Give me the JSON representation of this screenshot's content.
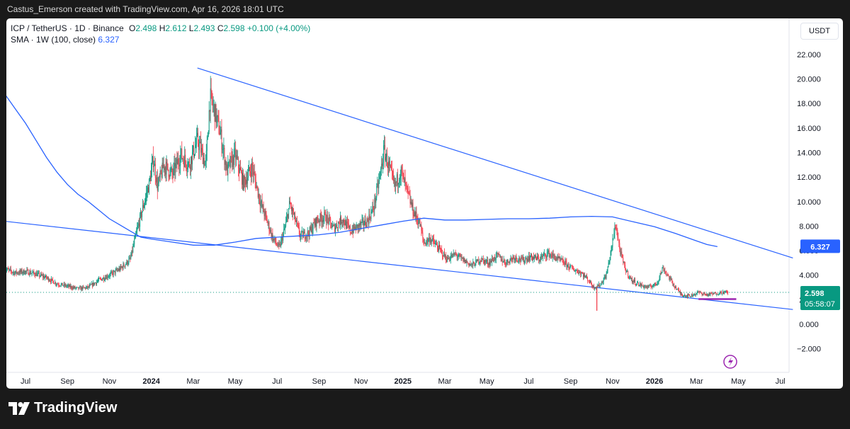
{
  "header": {
    "attribution": "Castus_Emerson created with TradingView.com, Apr 16, 2026 18:01 UTC"
  },
  "legend": {
    "symbol": "ICP / TetherUS · 1D · Binance",
    "open_label": "O",
    "open": "2.498",
    "high_label": "H",
    "high": "2.612",
    "low_label": "L",
    "low": "2.493",
    "close_label": "C",
    "close": "2.598",
    "change": "+0.100 (+4.00%)",
    "sma_label": "SMA · 1W (100, close)",
    "sma_value": "6.327"
  },
  "currency_button": "USDT",
  "price_tags": {
    "sma": "6.327",
    "price": "2.598",
    "countdown": "05:58:07"
  },
  "brand": {
    "name": "TradingView"
  },
  "colors": {
    "up": "#089981",
    "down": "#f23645",
    "trendline": "#2962ff",
    "sma": "#2962ff",
    "support": "#9c27b0",
    "background": "#ffffff"
  },
  "chart_data": {
    "type": "candlestick",
    "title": "ICP / TetherUS · 1D · Binance",
    "ylim": [
      -3,
      23.5
    ],
    "y_ticks": [
      -2,
      0,
      2,
      4,
      6,
      8,
      10,
      12,
      14,
      16,
      18,
      20,
      22
    ],
    "y_tick_labels": [
      "−2.000",
      "0.000",
      "2.000",
      "4.000",
      "6.000",
      "8.000",
      "10.000",
      "12.000",
      "14.000",
      "16.000",
      "18.000",
      "20.000",
      "22.000"
    ],
    "xlim": [
      0,
      37.6
    ],
    "x_ticks": [
      {
        "m": 1,
        "label": "Jul"
      },
      {
        "m": 3,
        "label": "Sep"
      },
      {
        "m": 5,
        "label": "Nov"
      },
      {
        "m": 7,
        "label": "2024",
        "bold": true
      },
      {
        "m": 9,
        "label": "Mar"
      },
      {
        "m": 11,
        "label": "May"
      },
      {
        "m": 13,
        "label": "Jul"
      },
      {
        "m": 15,
        "label": "Sep"
      },
      {
        "m": 17,
        "label": "Nov"
      },
      {
        "m": 19,
        "label": "2025",
        "bold": true
      },
      {
        "m": 21,
        "label": "Mar"
      },
      {
        "m": 23,
        "label": "May"
      },
      {
        "m": 25,
        "label": "Jul"
      },
      {
        "m": 27,
        "label": "Sep"
      },
      {
        "m": 29,
        "label": "Nov"
      },
      {
        "m": 31,
        "label": "2026",
        "bold": true
      },
      {
        "m": 33,
        "label": "Mar"
      },
      {
        "m": 35,
        "label": "May"
      },
      {
        "m": 37,
        "label": "Jul"
      }
    ],
    "price_path": [
      [
        0,
        4.5
      ],
      [
        0.5,
        4.2
      ],
      [
        1,
        4.3
      ],
      [
        1.5,
        4.1
      ],
      [
        2,
        3.8
      ],
      [
        2.5,
        3.3
      ],
      [
        3,
        3.1
      ],
      [
        3.5,
        2.9
      ],
      [
        4,
        3.0
      ],
      [
        4.5,
        3.6
      ],
      [
        5,
        4.0
      ],
      [
        5.5,
        4.5
      ],
      [
        6,
        5.3
      ],
      [
        6.3,
        7.5
      ],
      [
        6.6,
        9.5
      ],
      [
        6.9,
        11.5
      ],
      [
        7.1,
        13.5
      ],
      [
        7.3,
        11.2
      ],
      [
        7.6,
        13.0
      ],
      [
        8,
        12.2
      ],
      [
        8.4,
        13.8
      ],
      [
        8.8,
        13.0
      ],
      [
        9.2,
        15.0
      ],
      [
        9.6,
        13.0
      ],
      [
        9.8,
        18.5
      ],
      [
        10.0,
        17.5
      ],
      [
        10.3,
        15.5
      ],
      [
        10.6,
        12.5
      ],
      [
        11,
        13.8
      ],
      [
        11.4,
        11.5
      ],
      [
        11.8,
        12.8
      ],
      [
        12.2,
        10.0
      ],
      [
        12.5,
        8.5
      ],
      [
        12.8,
        7.0
      ],
      [
        13.1,
        6.2
      ],
      [
        13.4,
        8.0
      ],
      [
        13.6,
        9.8
      ],
      [
        13.8,
        8.8
      ],
      [
        14.1,
        7.2
      ],
      [
        14.5,
        7.4
      ],
      [
        14.9,
        8.5
      ],
      [
        15.3,
        8.8
      ],
      [
        15.7,
        7.8
      ],
      [
        16.1,
        8.6
      ],
      [
        16.5,
        7.6
      ],
      [
        16.9,
        8.0
      ],
      [
        17.3,
        8.4
      ],
      [
        17.6,
        9.5
      ],
      [
        17.9,
        12.0
      ],
      [
        18.1,
        14.2
      ],
      [
        18.3,
        13.0
      ],
      [
        18.6,
        11.2
      ],
      [
        18.9,
        12.5
      ],
      [
        19.2,
        10.8
      ],
      [
        19.5,
        9.2
      ],
      [
        19.8,
        8.2
      ],
      [
        20.0,
        6.6
      ],
      [
        20.3,
        7.0
      ],
      [
        20.7,
        6.2
      ],
      [
        21.1,
        5.3
      ],
      [
        21.5,
        5.7
      ],
      [
        21.9,
        5.2
      ],
      [
        22.3,
        4.8
      ],
      [
        22.7,
        5.3
      ],
      [
        23.1,
        5.0
      ],
      [
        23.5,
        5.6
      ],
      [
        23.9,
        5.0
      ],
      [
        24.3,
        5.5
      ],
      [
        24.7,
        5.2
      ],
      [
        25.1,
        5.5
      ],
      [
        25.5,
        5.3
      ],
      [
        25.9,
        5.8
      ],
      [
        26.3,
        5.4
      ],
      [
        26.7,
        5.0
      ],
      [
        27.1,
        4.5
      ],
      [
        27.5,
        4.2
      ],
      [
        27.8,
        3.7
      ],
      [
        28.1,
        3.0
      ],
      [
        28.4,
        3.2
      ],
      [
        28.7,
        4.0
      ],
      [
        28.95,
        6.2
      ],
      [
        29.15,
        8.2
      ],
      [
        29.35,
        6.0
      ],
      [
        29.6,
        4.5
      ],
      [
        29.9,
        3.6
      ],
      [
        30.3,
        3.2
      ],
      [
        30.7,
        3.0
      ],
      [
        31.1,
        3.3
      ],
      [
        31.4,
        4.6
      ],
      [
        31.7,
        3.8
      ],
      [
        32.0,
        3.0
      ],
      [
        32.3,
        2.4
      ],
      [
        32.7,
        2.3
      ],
      [
        33.1,
        2.6
      ],
      [
        33.5,
        2.4
      ],
      [
        33.9,
        2.5
      ],
      [
        34.2,
        2.6
      ],
      [
        34.5,
        2.6
      ]
    ],
    "sma": {
      "name": "SMA 1W (100, close)",
      "path": [
        [
          0,
          18.8
        ],
        [
          0.5,
          17.6
        ],
        [
          1,
          16.4
        ],
        [
          1.5,
          15.0
        ],
        [
          2,
          13.6
        ],
        [
          2.5,
          12.4
        ],
        [
          3,
          11.4
        ],
        [
          3.5,
          10.6
        ],
        [
          4,
          10.0
        ],
        [
          4.5,
          9.3
        ],
        [
          5,
          8.6
        ],
        [
          5.5,
          8.1
        ],
        [
          6,
          7.6
        ],
        [
          6.5,
          7.1
        ],
        [
          7,
          6.95
        ],
        [
          8,
          6.7
        ],
        [
          9,
          6.45
        ],
        [
          10,
          6.45
        ],
        [
          11,
          6.7
        ],
        [
          12,
          7.0
        ],
        [
          13,
          7.1
        ],
        [
          14,
          7.2
        ],
        [
          15,
          7.3
        ],
        [
          16,
          7.5
        ],
        [
          17,
          7.8
        ],
        [
          18,
          8.1
        ],
        [
          19,
          8.4
        ],
        [
          20,
          8.65
        ],
        [
          21,
          8.5
        ],
        [
          22,
          8.5
        ],
        [
          23,
          8.55
        ],
        [
          24,
          8.6
        ],
        [
          25,
          8.6
        ],
        [
          26,
          8.65
        ],
        [
          27,
          8.75
        ],
        [
          28,
          8.8
        ],
        [
          29,
          8.75
        ],
        [
          30,
          8.35
        ],
        [
          31,
          7.95
        ],
        [
          32,
          7.4
        ],
        [
          33,
          6.8
        ],
        [
          33.5,
          6.5
        ],
        [
          34,
          6.33
        ]
      ]
    },
    "trendlines": [
      {
        "name": "upper-resistance",
        "from": [
          9.2,
          20.9
        ],
        "to": [
          37.6,
          5.4
        ]
      },
      {
        "name": "lower-support",
        "from": [
          0,
          8.4
        ],
        "to": [
          37.6,
          1.2
        ]
      }
    ],
    "support_zone": {
      "from": [
        33.1,
        2.05
      ],
      "to": [
        34.9,
        2.05
      ]
    },
    "wicks": [
      {
        "m": 28.25,
        "low": 1.1
      }
    ],
    "current_price": 2.598
  }
}
